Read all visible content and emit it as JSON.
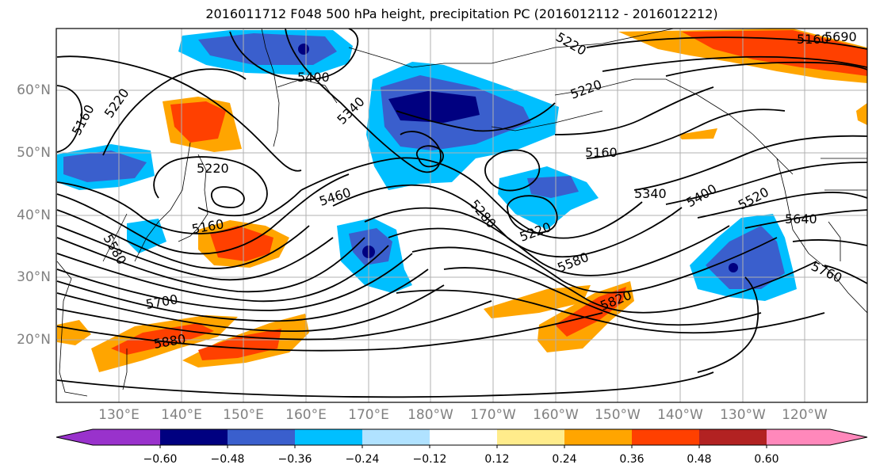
{
  "title": "2016011712 F048 500 hPa height, precipitation PC (2016012112 - 2016012212)",
  "map": {
    "projection": "PlateCarree",
    "extent_lon": [
      120,
      250
    ],
    "extent_lat": [
      10,
      70
    ],
    "lat_ticks": [
      "20°N",
      "30°N",
      "40°N",
      "50°N",
      "60°N"
    ],
    "lon_ticks": [
      "130°E",
      "140°E",
      "150°E",
      "160°E",
      "170°E",
      "180°W",
      "170°W",
      "160°W",
      "150°W",
      "140°W",
      "130°W",
      "120°W"
    ],
    "gridlines": true,
    "contour_labels": [
      "5160",
      "5220",
      "5400",
      "5340",
      "5220",
      "5160",
      "5220",
      "5160",
      "5160",
      "5460",
      "5280",
      "5220",
      "5340",
      "5400",
      "5520",
      "5640",
      "5580",
      "5700",
      "5880",
      "5820",
      "5760",
      "5580",
      "5220",
      "5690"
    ]
  },
  "colorbar": {
    "ticks": [
      "−0.60",
      "−0.48",
      "−0.36",
      "−0.24",
      "−0.12",
      "0.12",
      "0.24",
      "0.36",
      "0.48",
      "0.60"
    ],
    "colors": [
      "#9932cc",
      "#000080",
      "#3a5fcd",
      "#00bfff",
      "#b0e2ff",
      "#ffffff",
      "#ffec8b",
      "#ffa500",
      "#ff4000",
      "#b22222",
      "#ff88bb"
    ]
  }
}
